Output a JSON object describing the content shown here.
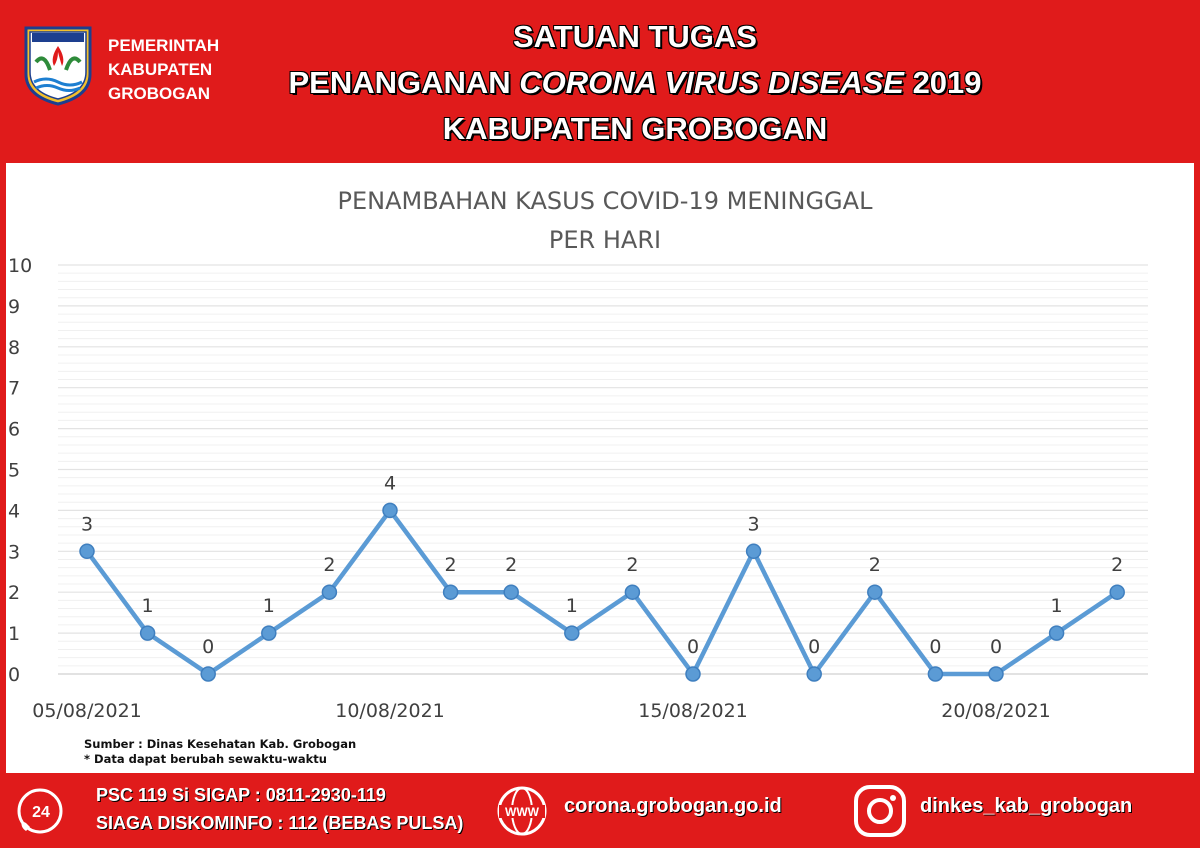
{
  "header": {
    "org_lines": [
      "PEMERINTAH",
      "KABUPATEN",
      "GROBOGAN"
    ],
    "title_line1": "SATUAN TUGAS",
    "title_line2_prefix": "PENANGANAN ",
    "title_line2_italic": "CORONA VIRUS DISEASE",
    "title_line2_suffix": " 2019",
    "title_line3": "KABUPATEN GROBOGAN",
    "logo_icon": "kabupaten-grobogan-emblem"
  },
  "source": {
    "line1": "Sumber : Dinas Kesehatan Kab. Grobogan",
    "line2": "* Data dapat berubah sewaktu-waktu"
  },
  "footer": {
    "contact_line1": "PSC 119 Si SIGAP : 0811-2930-119",
    "contact_line2": "SIAGA DISKOMINFO : 112 (BEBAS PULSA)",
    "website": "corona.grobogan.go.id",
    "instagram": "dinkes_kab_grobogan",
    "phone_icon": "phone-24-icon",
    "web_icon": "www-globe-icon",
    "ig_icon": "instagram-icon"
  },
  "colors": {
    "brand_red": "#e01b1b",
    "line": "#5b9bd5",
    "grid": "#e3e3e3"
  },
  "chart_data": {
    "type": "line",
    "title_lines": [
      "PENAMBAHAN KASUS COVID-19 MENINGGAL",
      "PER HARI"
    ],
    "x": [
      "05/08/2021",
      "06/08/2021",
      "07/08/2021",
      "08/08/2021",
      "09/08/2021",
      "10/08/2021",
      "11/08/2021",
      "12/08/2021",
      "13/08/2021",
      "14/08/2021",
      "15/08/2021",
      "16/08/2021",
      "17/08/2021",
      "18/08/2021",
      "19/08/2021",
      "20/08/2021",
      "21/08/2021",
      "22/08/2021"
    ],
    "x_tick_labels": [
      "05/08/2021",
      "10/08/2021",
      "15/08/2021",
      "20/08/2021"
    ],
    "series": [
      {
        "values": [
          3,
          1,
          0,
          1,
          2,
          4,
          2,
          2,
          1,
          2,
          0,
          3,
          0,
          2,
          0,
          0,
          1,
          2
        ]
      }
    ],
    "ylim": [
      0,
      10
    ],
    "y_ticks": [
      0,
      1,
      2,
      3,
      4,
      5,
      6,
      7,
      8,
      9,
      10
    ],
    "grid": true,
    "data_labels": true,
    "legend": "none"
  }
}
